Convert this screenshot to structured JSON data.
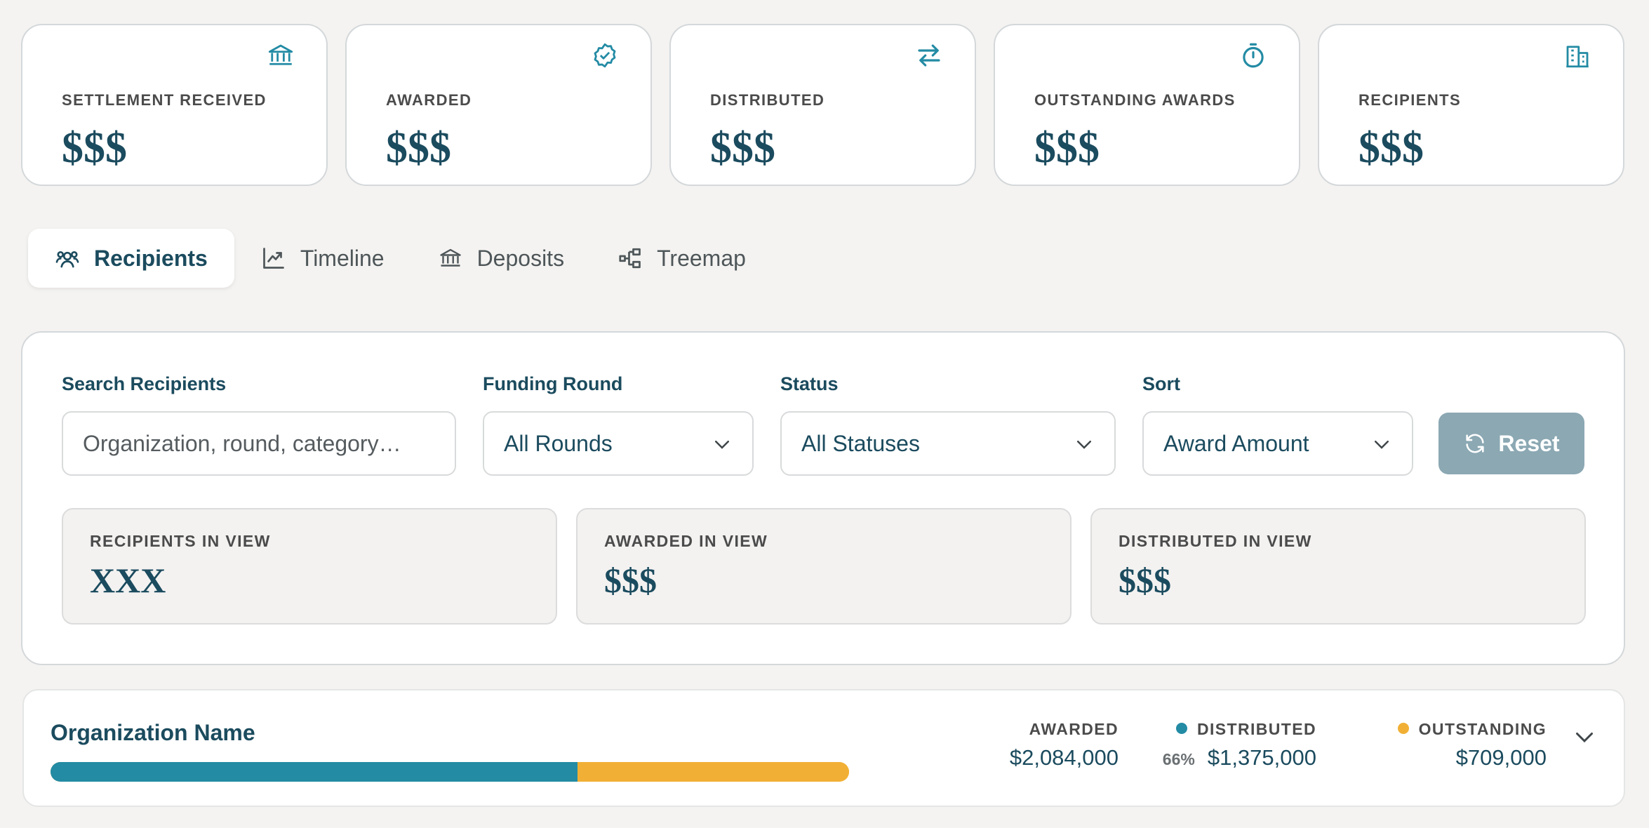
{
  "stats": [
    {
      "label": "SETTLEMENT RECEIVED",
      "value": "$$$",
      "icon": "bank-icon"
    },
    {
      "label": "AWARDED",
      "value": "$$$",
      "icon": "badge-check-icon"
    },
    {
      "label": "DISTRIBUTED",
      "value": "$$$",
      "icon": "arrows-exchange-icon"
    },
    {
      "label": "OUTSTANDING AWARDS",
      "value": "$$$",
      "icon": "timer-icon"
    },
    {
      "label": "RECIPIENTS",
      "value": "$$$",
      "icon": "building-icon"
    }
  ],
  "tabs": [
    {
      "label": "Recipients",
      "icon": "users-icon",
      "active": true
    },
    {
      "label": "Timeline",
      "icon": "chart-line-icon",
      "active": false
    },
    {
      "label": "Deposits",
      "icon": "bank-icon",
      "active": false
    },
    {
      "label": "Treemap",
      "icon": "hierarchy-icon",
      "active": false
    }
  ],
  "filters": {
    "search_label": "Search Recipients",
    "search_placeholder": "Organization, round, category…",
    "round_label": "Funding Round",
    "round_value": "All Rounds",
    "status_label": "Status",
    "status_value": "All Statuses",
    "sort_label": "Sort",
    "sort_value": "Award Amount",
    "reset_label": "Reset"
  },
  "view_summary": [
    {
      "label": "RECIPIENTS IN VIEW",
      "value": "XXX"
    },
    {
      "label": "AWARDED IN VIEW",
      "value": "$$$"
    },
    {
      "label": "DISTRIBUTED IN VIEW",
      "value": "$$$"
    }
  ],
  "org_row": {
    "name": "Organization Name",
    "awarded_label": "AWARDED",
    "awarded_value": "$2,084,000",
    "distributed_label": "DISTRIBUTED",
    "distributed_pct": "66%",
    "distributed_fraction": 0.66,
    "distributed_value": "$1,375,000",
    "outstanding_label": "OUTSTANDING",
    "outstanding_value": "$709,000"
  },
  "colors": {
    "accent": "#238ba4",
    "outstanding": "#f1b035",
    "title": "#1b4b5e",
    "reset_bg": "#8ba8b3"
  }
}
